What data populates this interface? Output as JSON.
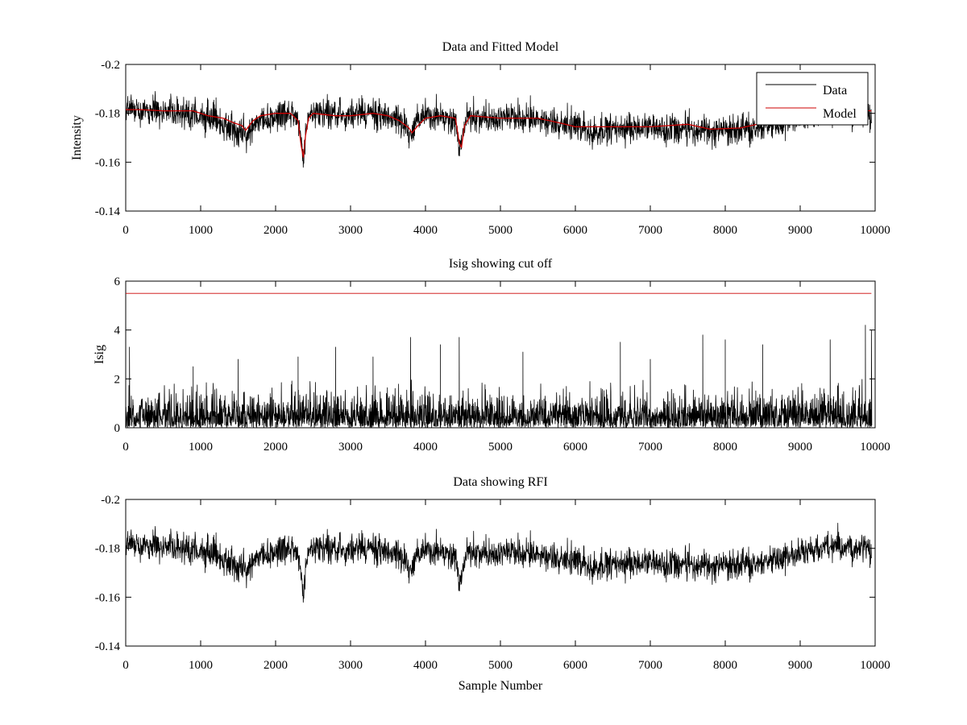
{
  "chart_data": [
    {
      "id": "top",
      "type": "line",
      "title": "Data and Fitted Model",
      "xlabel": "",
      "ylabel": "Intensity",
      "xlim": [
        0,
        10000
      ],
      "ylim": [
        -0.2,
        -0.14
      ],
      "y_reversed": true,
      "xticks": [
        0,
        1000,
        2000,
        3000,
        4000,
        5000,
        6000,
        7000,
        8000,
        9000,
        10000
      ],
      "yticks": [
        -0.2,
        -0.18,
        -0.16,
        -0.14
      ],
      "legend": {
        "placement": "top-right",
        "entries": [
          "Data",
          "Model"
        ]
      },
      "series": [
        {
          "name": "Data",
          "color": "#000000",
          "kind": "noisy",
          "noise_amplitude": 0.006,
          "x": [
            0,
            100,
            300,
            600,
            900,
            1100,
            1300,
            1450,
            1550,
            1600,
            1650,
            1700,
            1800,
            2000,
            2200,
            2300,
            2340,
            2370,
            2400,
            2440,
            2500,
            2700,
            3000,
            3300,
            3500,
            3700,
            3800,
            3850,
            3900,
            4000,
            4200,
            4400,
            4450,
            4480,
            4520,
            4600,
            5000,
            5500,
            6000,
            6300,
            6600,
            7000,
            7500,
            8000,
            8400,
            8800,
            9100,
            9400,
            9700,
            9950
          ],
          "y": [
            -0.183,
            -0.182,
            -0.181,
            -0.18,
            -0.179,
            -0.178,
            -0.176,
            -0.174,
            -0.172,
            -0.171,
            -0.173,
            -0.175,
            -0.177,
            -0.179,
            -0.18,
            -0.178,
            -0.168,
            -0.159,
            -0.17,
            -0.178,
            -0.18,
            -0.18,
            -0.179,
            -0.18,
            -0.179,
            -0.176,
            -0.172,
            -0.174,
            -0.178,
            -0.179,
            -0.179,
            -0.177,
            -0.165,
            -0.168,
            -0.176,
            -0.178,
            -0.178,
            -0.177,
            -0.174,
            -0.173,
            -0.173,
            -0.174,
            -0.173,
            -0.173,
            -0.174,
            -0.176,
            -0.179,
            -0.181,
            -0.18,
            -0.179
          ]
        },
        {
          "name": "Model",
          "color": "#cc0000",
          "kind": "smooth",
          "x": [
            0,
            200,
            500,
            900,
            1100,
            1300,
            1450,
            1550,
            1600,
            1650,
            1700,
            1800,
            2000,
            2200,
            2300,
            2340,
            2370,
            2400,
            2440,
            2500,
            2800,
            3000,
            3300,
            3500,
            3650,
            3780,
            3820,
            3900,
            4000,
            4200,
            4400,
            4450,
            4480,
            4520,
            4600,
            5000,
            5500,
            5800,
            6000,
            6500,
            7000,
            7500,
            7800,
            8200,
            8500,
            8800,
            9100,
            9400,
            9700,
            9950
          ],
          "y": [
            -0.1815,
            -0.1815,
            -0.181,
            -0.181,
            -0.179,
            -0.178,
            -0.176,
            -0.175,
            -0.173,
            -0.175,
            -0.177,
            -0.179,
            -0.18,
            -0.18,
            -0.177,
            -0.167,
            -0.162,
            -0.171,
            -0.178,
            -0.18,
            -0.179,
            -0.179,
            -0.18,
            -0.179,
            -0.177,
            -0.174,
            -0.172,
            -0.175,
            -0.178,
            -0.179,
            -0.178,
            -0.168,
            -0.166,
            -0.175,
            -0.179,
            -0.178,
            -0.178,
            -0.176,
            -0.1745,
            -0.1745,
            -0.1745,
            -0.1755,
            -0.1735,
            -0.174,
            -0.176,
            -0.1785,
            -0.181,
            -0.1815,
            -0.1815,
            -0.181
          ]
        }
      ]
    },
    {
      "id": "middle",
      "type": "line",
      "title": "Isig showing cut off",
      "xlabel": "",
      "ylabel": "Isig",
      "xlim": [
        0,
        10000
      ],
      "ylim": [
        0,
        6
      ],
      "y_reversed": false,
      "xticks": [
        0,
        1000,
        2000,
        3000,
        4000,
        5000,
        6000,
        7000,
        8000,
        9000,
        10000
      ],
      "yticks": [
        0,
        2,
        4,
        6
      ],
      "series": [
        {
          "name": "",
          "color": "#000000",
          "kind": "spiky",
          "typical_max": 2.0,
          "spikes": [
            [
              50,
              3.3
            ],
            [
              900,
              2.5
            ],
            [
              1500,
              2.8
            ],
            [
              2300,
              2.9
            ],
            [
              2800,
              3.3
            ],
            [
              3300,
              2.9
            ],
            [
              3800,
              3.7
            ],
            [
              4200,
              3.4
            ],
            [
              4450,
              3.7
            ],
            [
              5300,
              3.1
            ],
            [
              6600,
              3.5
            ],
            [
              7000,
              2.8
            ],
            [
              7700,
              3.8
            ],
            [
              8000,
              3.6
            ],
            [
              8500,
              3.4
            ],
            [
              9400,
              3.6
            ],
            [
              9870,
              4.2
            ],
            [
              9950,
              4.0
            ]
          ]
        },
        {
          "name": "cut off",
          "color": "#cc0000",
          "kind": "flat",
          "x": [
            0,
            9950
          ],
          "y": [
            5.5,
            5.5
          ]
        }
      ]
    },
    {
      "id": "bottom",
      "type": "line",
      "title": "Data showing RFI",
      "xlabel": "Sample Number",
      "ylabel": "",
      "xlim": [
        0,
        10000
      ],
      "ylim": [
        -0.2,
        -0.14
      ],
      "y_reversed": true,
      "xticks": [
        0,
        1000,
        2000,
        3000,
        4000,
        5000,
        6000,
        7000,
        8000,
        9000,
        10000
      ],
      "yticks": [
        -0.2,
        -0.18,
        -0.16,
        -0.14
      ],
      "series": [
        {
          "name": "Data",
          "color": "#000000",
          "kind": "noisy",
          "noise_amplitude": 0.006,
          "x": [
            0,
            100,
            300,
            600,
            900,
            1100,
            1300,
            1450,
            1550,
            1600,
            1650,
            1700,
            1800,
            2000,
            2200,
            2300,
            2340,
            2370,
            2400,
            2440,
            2500,
            2700,
            3000,
            3300,
            3500,
            3700,
            3800,
            3850,
            3900,
            4000,
            4200,
            4400,
            4450,
            4480,
            4520,
            4600,
            5000,
            5500,
            6000,
            6300,
            6600,
            7000,
            7500,
            8000,
            8400,
            8800,
            9100,
            9400,
            9700,
            9950
          ],
          "y": [
            -0.183,
            -0.182,
            -0.181,
            -0.18,
            -0.179,
            -0.178,
            -0.176,
            -0.174,
            -0.172,
            -0.171,
            -0.173,
            -0.175,
            -0.177,
            -0.179,
            -0.18,
            -0.178,
            -0.168,
            -0.159,
            -0.17,
            -0.178,
            -0.18,
            -0.18,
            -0.179,
            -0.18,
            -0.179,
            -0.176,
            -0.172,
            -0.174,
            -0.178,
            -0.179,
            -0.179,
            -0.177,
            -0.165,
            -0.168,
            -0.176,
            -0.178,
            -0.178,
            -0.177,
            -0.174,
            -0.173,
            -0.173,
            -0.174,
            -0.173,
            -0.173,
            -0.174,
            -0.176,
            -0.179,
            -0.181,
            -0.18,
            -0.179
          ]
        }
      ]
    }
  ]
}
